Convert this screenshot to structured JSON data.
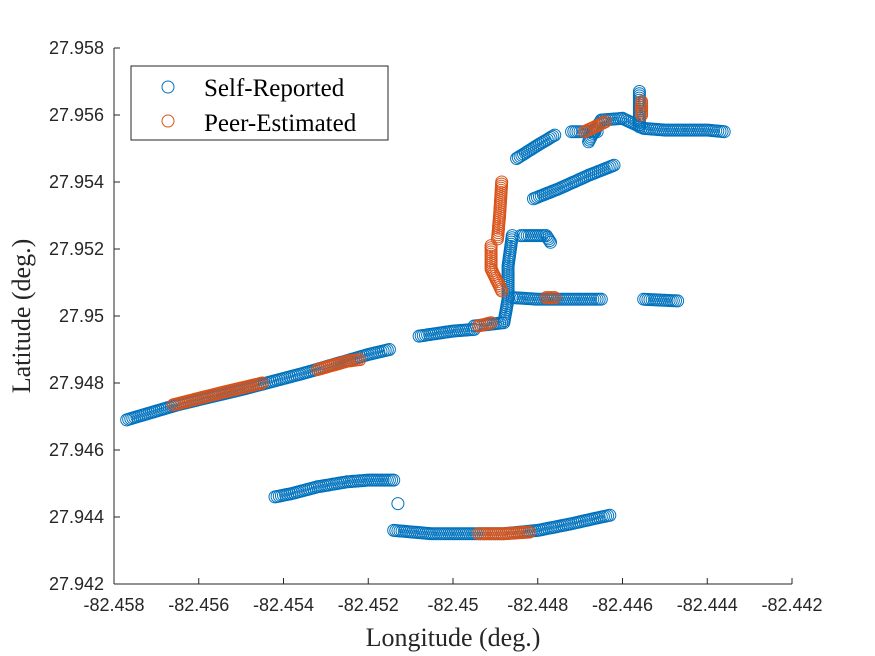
{
  "chart_data": {
    "type": "scatter",
    "xlabel": "Longitude (deg.)",
    "ylabel": "Latitude (deg.)",
    "xlim": [
      -82.458,
      -82.442
    ],
    "ylim": [
      27.942,
      27.958
    ],
    "xticks": [
      -82.458,
      -82.456,
      -82.454,
      -82.452,
      -82.45,
      -82.448,
      -82.446,
      -82.444,
      -82.442
    ],
    "yticks": [
      27.942,
      27.944,
      27.946,
      27.948,
      27.95,
      27.952,
      27.954,
      27.956,
      27.958
    ],
    "xtick_labels": [
      "-82.458",
      "-82.456",
      "-82.454",
      "-82.452",
      "-82.45",
      "-82.448",
      "-82.446",
      "-82.444",
      "-82.442"
    ],
    "ytick_labels": [
      "27.942",
      "27.944",
      "27.946",
      "27.948",
      "27.95",
      "27.952",
      "27.954",
      "27.956",
      "27.958"
    ],
    "grid": false,
    "legend_position": "top-left",
    "series": [
      {
        "name": "Self-Reported",
        "color": "#0072BD",
        "marker": "open-circle",
        "segments": [
          [
            [
              -82.4577,
              27.9469
            ],
            [
              -82.4565,
              27.94735
            ],
            [
              -82.455,
              27.9478
            ],
            [
              -82.4535,
              27.9483
            ],
            [
              -82.452,
              27.94885
            ],
            [
              -82.4515,
              27.949
            ]
          ],
          [
            [
              -82.4508,
              27.9494
            ],
            [
              -82.45,
              27.94955
            ],
            [
              -82.4495,
              27.9496
            ]
          ],
          [
            [
              -82.4495,
              27.9497
            ],
            [
              -82.4488,
              27.9498
            ],
            [
              -82.4487,
              27.9505
            ],
            [
              -82.4487,
              27.9515
            ],
            [
              -82.4486,
              27.9524
            ]
          ],
          [
            [
              -82.4484,
              27.9524
            ],
            [
              -82.4478,
              27.9524
            ],
            [
              -82.4477,
              27.9522
            ]
          ],
          [
            [
              -82.4486,
              27.95055
            ],
            [
              -82.448,
              27.9505
            ],
            [
              -82.447,
              27.9505
            ],
            [
              -82.4465,
              27.9505
            ]
          ],
          [
            [
              -82.4455,
              27.9505
            ],
            [
              -82.4447,
              27.95045
            ]
          ],
          [
            [
              -82.4481,
              27.9535
            ],
            [
              -82.4475,
              27.9538
            ],
            [
              -82.4468,
              27.9542
            ],
            [
              -82.4462,
              27.9545
            ]
          ],
          [
            [
              -82.4485,
              27.9547
            ],
            [
              -82.448,
              27.9551
            ],
            [
              -82.4476,
              27.9554
            ]
          ],
          [
            [
              -82.4468,
              27.9552
            ],
            [
              -82.4467,
              27.95545
            ],
            [
              -82.4465,
              27.95585
            ],
            [
              -82.446,
              27.9559
            ],
            [
              -82.4455,
              27.9556
            ],
            [
              -82.445,
              27.95555
            ],
            [
              -82.444,
              27.95555
            ],
            [
              -82.4436,
              27.9555
            ]
          ],
          [
            [
              -82.4472,
              27.9555
            ],
            [
              -82.4466,
              27.9555
            ]
          ],
          [
            [
              -82.4456,
              27.95565
            ],
            [
              -82.4456,
              27.9567
            ]
          ],
          [
            [
              -82.4542,
              27.9446
            ],
            [
              -82.4538,
              27.9447
            ],
            [
              -82.4532,
              27.9449
            ],
            [
              -82.4525,
              27.94505
            ],
            [
              -82.452,
              27.9451
            ],
            [
              -82.4514,
              27.9451
            ]
          ],
          [
            [
              -82.4513,
              27.9444
            ]
          ],
          [
            [
              -82.4514,
              27.9436
            ],
            [
              -82.4505,
              27.9435
            ],
            [
              -82.4495,
              27.9435
            ],
            [
              -82.4488,
              27.9435
            ],
            [
              -82.448,
              27.9436
            ],
            [
              -82.4472,
              27.9438
            ],
            [
              -82.4465,
              27.944
            ],
            [
              -82.4463,
              27.94405
            ]
          ]
        ]
      },
      {
        "name": "Peer-Estimated",
        "color": "#D95319",
        "marker": "open-circle",
        "segments": [
          [
            [
              -82.4566,
              27.94735
            ],
            [
              -82.4555,
              27.9477
            ],
            [
              -82.4545,
              27.948
            ]
          ],
          [
            [
              -82.4532,
              27.9484
            ],
            [
              -82.4525,
              27.94865
            ],
            [
              -82.4522,
              27.9487
            ]
          ],
          [
            [
              -82.4494,
              27.9497
            ],
            [
              -82.4491,
              27.9498
            ]
          ],
          [
            [
              -82.44885,
              27.954
            ],
            [
              -82.4489,
              27.953
            ],
            [
              -82.44895,
              27.9523
            ]
          ],
          [
            [
              -82.4491,
              27.9521
            ],
            [
              -82.4491,
              27.9514
            ],
            [
              -82.44885,
              27.95075
            ]
          ],
          [
            [
              -82.4478,
              27.95055
            ],
            [
              -82.4476,
              27.95055
            ]
          ],
          [
            [
              -82.4469,
              27.9555
            ],
            [
              -82.4464,
              27.9558
            ]
          ],
          [
            [
              -82.44555,
              27.956
            ],
            [
              -82.44555,
              27.9564
            ]
          ],
          [
            [
              -82.4494,
              27.9435
            ],
            [
              -82.4488,
              27.9435
            ],
            [
              -82.4482,
              27.94355
            ]
          ]
        ]
      }
    ]
  }
}
